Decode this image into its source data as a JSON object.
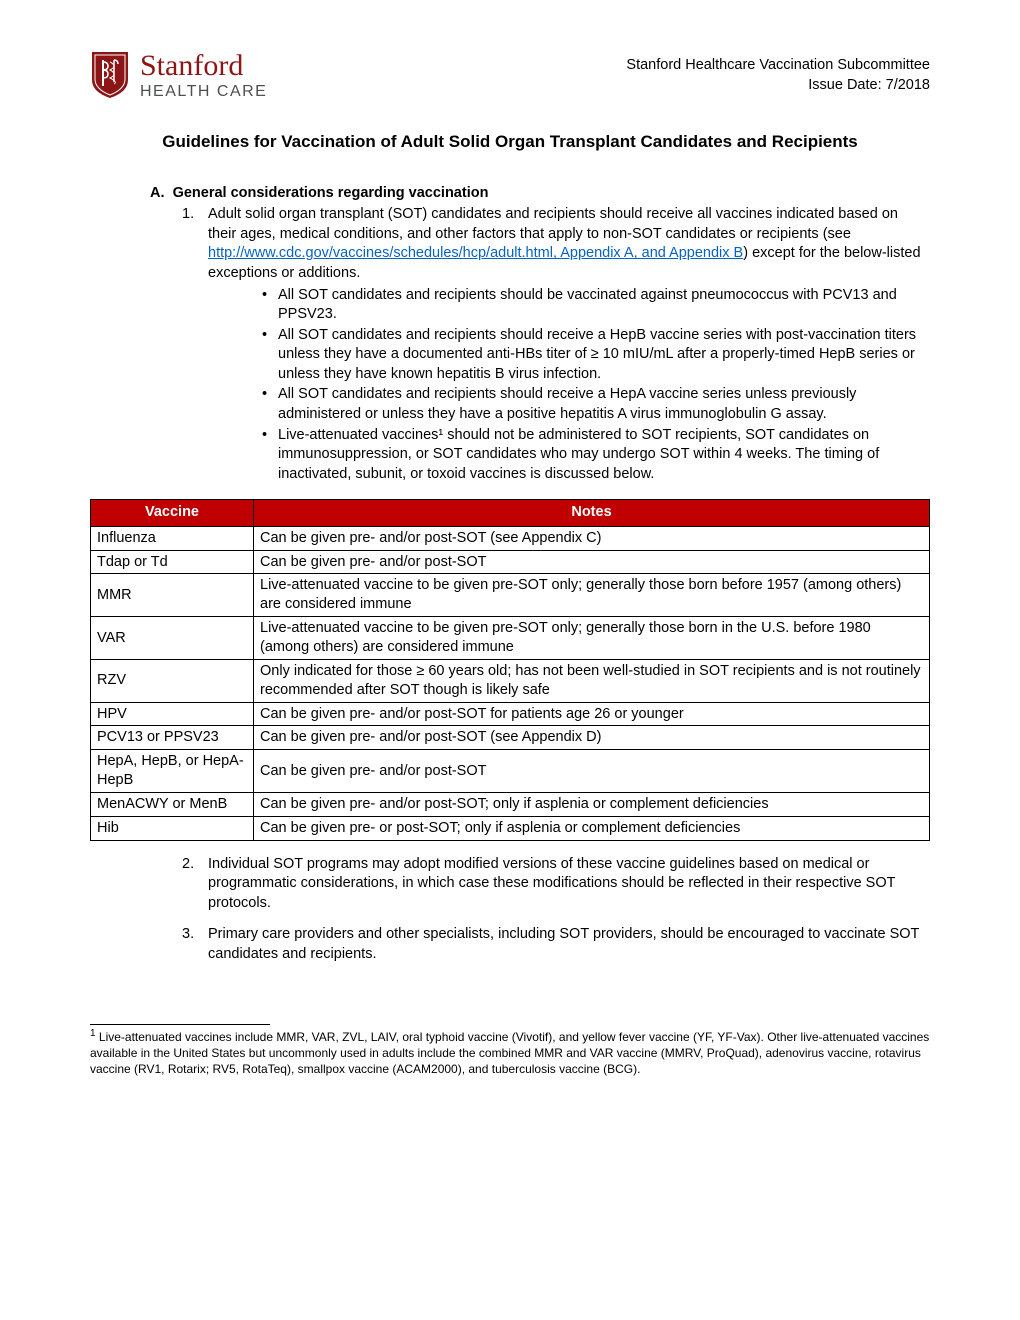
{
  "header": {
    "org_line1": "Stanford",
    "org_line2": "HEALTH CARE",
    "right_line1": "Stanford Healthcare Vaccination Subcommittee",
    "right_line2": "Issue Date: 7/2018",
    "shield_color": "#8c1515"
  },
  "title": "Guidelines for Vaccination of Adult Solid Organ Transplant Candidates and Recipients",
  "sectionA": {
    "label": "A.",
    "heading": "General considerations regarding vaccination",
    "item1_num": "1.",
    "item1_text_a": "Adult solid organ transplant (SOT) candidates and recipients should receive all vaccines indicated based on their ages, medical conditions, and other factors that apply to non-SOT candidates or recipients (see ",
    "item1_link": "http://www.cdc.gov/vaccines/schedules/hcp/adult.html, Appendix A, and Appendix B",
    "item1_text_b": ") except for the below-listed exceptions or additions.",
    "bullets": [
      "All SOT candidates and recipients should be vaccinated against pneumococcus with PCV13 and PPSV23.",
      "All SOT candidates and recipients should receive a HepB vaccine series with post-vaccination titers unless they have a documented anti-HBs titer of ≥ 10 mIU/mL after a properly-timed HepB series or unless they have known hepatitis B virus infection.",
      "All SOT candidates and recipients should receive a HepA vaccine series unless previously administered or unless they have a positive hepatitis A virus immunoglobulin G assay.",
      "Live-attenuated vaccines¹ should not be administered to SOT recipients, SOT candidates on immunosuppression, or SOT candidates who may undergo SOT within 4 weeks. The timing of inactivated, subunit, or toxoid vaccines is discussed below."
    ],
    "item2_num": "2.",
    "item2_text": "Individual SOT programs may adopt modified versions of these vaccine guidelines based on medical or programmatic considerations, in which case these modifications should be reflected in their respective SOT protocols.",
    "item3_num": "3.",
    "item3_text": "Primary care providers and other specialists, including SOT providers, should be encouraged to vaccinate SOT candidates and recipients."
  },
  "table": {
    "header_col1": "Vaccine",
    "header_col2": "Notes",
    "header_bg": "#c00000",
    "rows": [
      {
        "v": "Influenza",
        "n": "Can be given pre- and/or post-SOT (see Appendix C)"
      },
      {
        "v": "Tdap or Td",
        "n": "Can be given pre- and/or post-SOT"
      },
      {
        "v": "MMR",
        "n": "Live-attenuated vaccine to be given pre-SOT only; generally those born before 1957 (among others) are considered immune"
      },
      {
        "v": "VAR",
        "n": "Live-attenuated vaccine to be given pre-SOT only; generally those born in the U.S. before 1980 (among others) are considered immune"
      },
      {
        "v": "RZV",
        "n": "Only indicated for those ≥ 60 years old; has not been well-studied in SOT recipients and is not routinely recommended after SOT though is likely safe"
      },
      {
        "v": "HPV",
        "n": "Can be given pre- and/or post-SOT for patients age 26 or younger"
      },
      {
        "v": "PCV13 or PPSV23",
        "n": "Can be given pre- and/or post-SOT (see Appendix D)"
      },
      {
        "v": "HepA, HepB, or HepA-HepB",
        "n": "Can be given pre- and/or post-SOT"
      },
      {
        "v": "MenACWY or MenB",
        "n": "Can be given pre- and/or post-SOT; only if asplenia or complement deficiencies"
      },
      {
        "v": "Hib",
        "n": "Can be given pre- or post-SOT; only if asplenia or complement deficiencies"
      }
    ]
  },
  "footnote": {
    "marker": "1",
    "text": " Live-attenuated vaccines include MMR, VAR, ZVL, LAIV, oral typhoid vaccine (Vivotif), and yellow fever vaccine (YF, YF-Vax). Other live-attenuated vaccines available in the United States but uncommonly used in adults include the combined MMR and VAR vaccine (MMRV, ProQuad), adenovirus vaccine, rotavirus vaccine (RV1, Rotarix; RV5, RotaTeq), smallpox vaccine (ACAM2000), and tuberculosis vaccine (BCG)."
  }
}
